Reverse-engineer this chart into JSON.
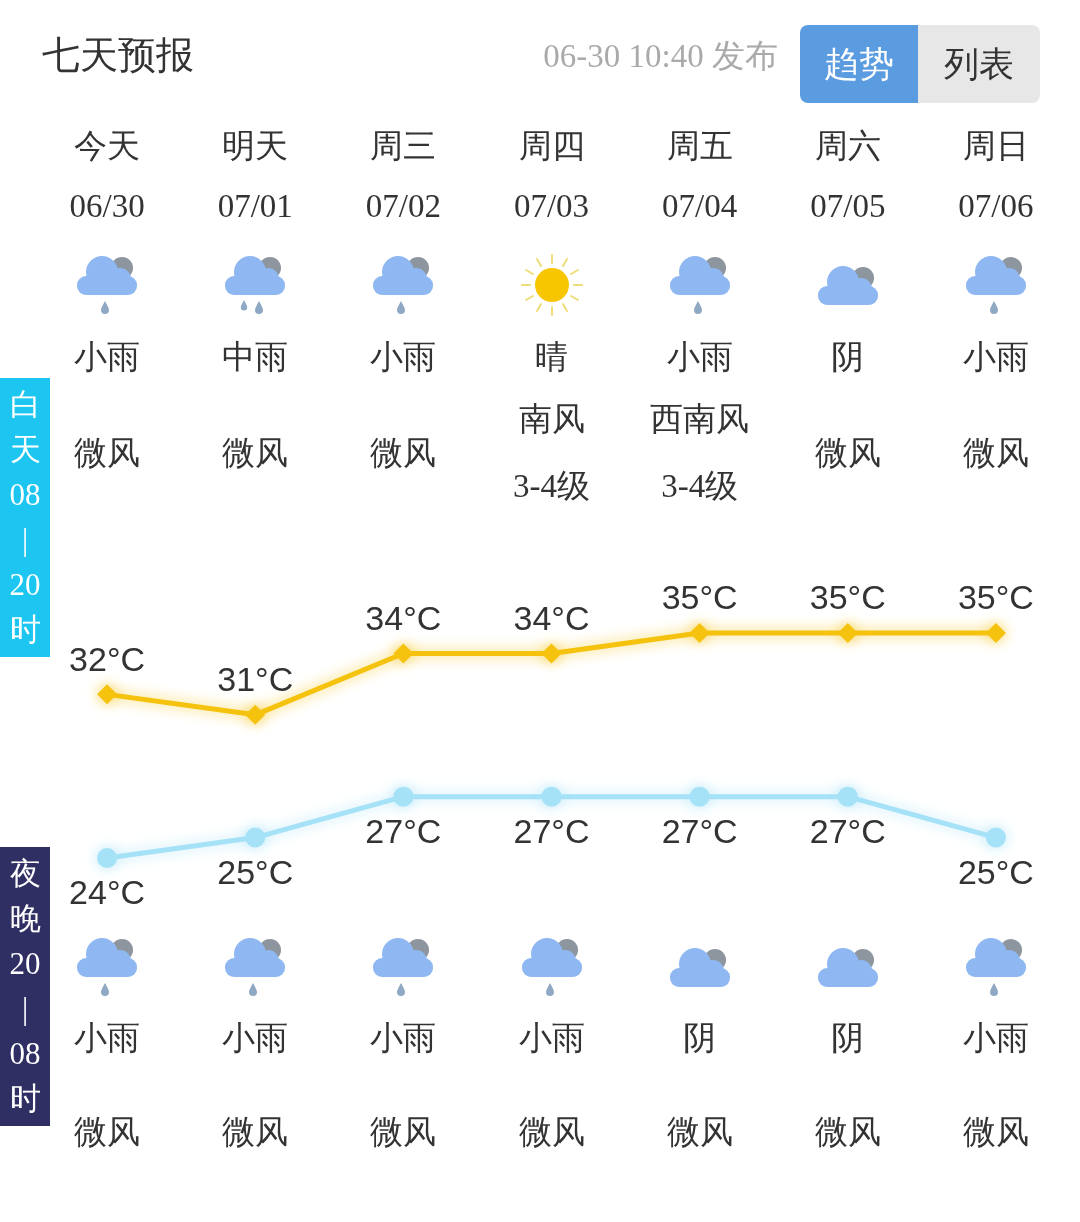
{
  "chart_data": {
    "type": "line",
    "title": "七天预报",
    "subtitle": "06-30 10:40 发布",
    "categories": [
      "今天\n06/30",
      "明天\n07/01",
      "周三\n07/02",
      "周四\n07/03",
      "周五\n07/04",
      "周六\n07/05",
      "周日\n07/06"
    ],
    "series": [
      {
        "color": "#f5c20d",
        "marker": "diamond",
        "values": [
          32,
          31,
          34,
          34,
          35,
          35,
          35
        ],
        "value_labels": [
          "32°C",
          "31°C",
          "34°C",
          "34°C",
          "35°C",
          "35°C",
          "35°C"
        ]
      },
      {
        "color": "#a6e2f7",
        "marker": "circle",
        "values": [
          24,
          25,
          27,
          27,
          27,
          27,
          25
        ],
        "value_labels": [
          "24°C",
          "25°C",
          "27°C",
          "27°C",
          "27°C",
          "27°C",
          "25°C"
        ]
      }
    ],
    "annotations": [
      "趋势",
      "列表",
      "白天08|20时",
      "夜晚20|08时",
      "小雨",
      "中雨",
      "小雨",
      "晴",
      "小雨",
      "阴",
      "小雨",
      "微风",
      "微风",
      "微风",
      "南风\n3-4级",
      "西南风\n3-4级",
      "微风",
      "微风",
      "小雨",
      "小雨",
      "小雨",
      "小雨",
      "阴",
      "阴",
      "小雨",
      "微风",
      "微风",
      "微风",
      "微风",
      "微风",
      "微风",
      "微风"
    ]
  }
}
